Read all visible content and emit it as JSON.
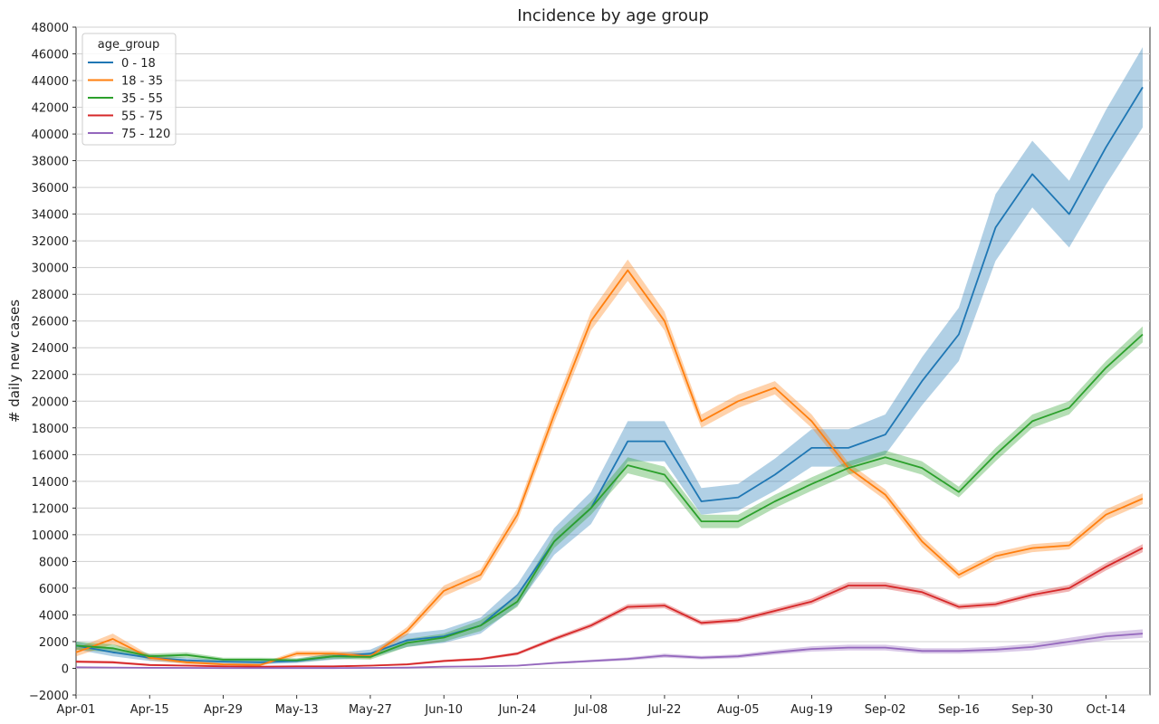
{
  "chart_data": {
    "type": "line",
    "title": "Incidence by age group",
    "xlabel": "",
    "ylabel": "# daily new cases",
    "ylim": [
      -2000,
      48000
    ],
    "yticks": [
      -2000,
      0,
      2000,
      4000,
      6000,
      8000,
      10000,
      12000,
      14000,
      16000,
      18000,
      20000,
      22000,
      24000,
      26000,
      28000,
      30000,
      32000,
      34000,
      36000,
      38000,
      40000,
      42000,
      44000,
      46000,
      48000
    ],
    "ytick_labels": [
      "−2000",
      "0",
      "2000",
      "4000",
      "6000",
      "8000",
      "10000",
      "12000",
      "14000",
      "16000",
      "18000",
      "20000",
      "22000",
      "24000",
      "26000",
      "28000",
      "30000",
      "32000",
      "34000",
      "36000",
      "38000",
      "40000",
      "42000",
      "44000",
      "46000",
      "48000"
    ],
    "x_dates": [
      "Apr-01",
      "Apr-08",
      "Apr-15",
      "Apr-22",
      "Apr-29",
      "May-06",
      "May-13",
      "May-20",
      "May-27",
      "Jun-03",
      "Jun-10",
      "Jun-17",
      "Jun-24",
      "Jul-01",
      "Jul-08",
      "Jul-15",
      "Jul-22",
      "Jul-29",
      "Aug-05",
      "Aug-12",
      "Aug-19",
      "Aug-26",
      "Sep-02",
      "Sep-09",
      "Sep-16",
      "Sep-23",
      "Sep-30",
      "Oct-07",
      "Oct-14",
      "Oct-21"
    ],
    "xticks": [
      "Apr-01",
      "Apr-15",
      "Apr-29",
      "May-13",
      "May-27",
      "Jun-10",
      "Jun-24",
      "Jul-08",
      "Jul-22",
      "Aug-05",
      "Aug-19",
      "Sep-02",
      "Sep-16",
      "Sep-30",
      "Oct-14"
    ],
    "grid": "horizontal",
    "legend": {
      "title": "age_group",
      "placement": "top-left"
    },
    "series": [
      {
        "name": "0 - 18",
        "color": "#1f77b4",
        "values": [
          1700,
          1200,
          800,
          600,
          500,
          450,
          550,
          900,
          1100,
          2100,
          2400,
          3200,
          5500,
          9500,
          12000,
          17000,
          17000,
          12500,
          12800,
          14500,
          16500,
          16500,
          17500,
          21500,
          25000,
          33000,
          37000,
          34000,
          39000,
          43500
        ],
        "band": [
          300,
          300,
          250,
          200,
          150,
          150,
          150,
          250,
          300,
          500,
          500,
          600,
          800,
          1000,
          1200,
          1500,
          1500,
          1000,
          1000,
          1200,
          1400,
          1400,
          1500,
          1800,
          2000,
          2500,
          2500,
          2500,
          2800,
          3000
        ]
      },
      {
        "name": "18 - 35",
        "color": "#ff7f0e",
        "values": [
          1200,
          2200,
          800,
          450,
          300,
          250,
          1100,
          1100,
          900,
          2800,
          5800,
          7000,
          11500,
          19000,
          26000,
          29800,
          26000,
          18500,
          20000,
          21000,
          18500,
          15000,
          13000,
          9500,
          7000,
          8400,
          9000,
          9200,
          11500,
          12700
        ],
        "band": [
          300,
          400,
          200,
          150,
          100,
          100,
          200,
          200,
          200,
          300,
          400,
          400,
          500,
          600,
          700,
          800,
          700,
          500,
          500,
          500,
          500,
          400,
          400,
          400,
          300,
          300,
          300,
          300,
          400,
          400
        ]
      },
      {
        "name": "35 - 55",
        "color": "#2ca02c",
        "values": [
          1700,
          1500,
          900,
          1000,
          650,
          650,
          600,
          900,
          850,
          1900,
          2300,
          3200,
          5000,
          9500,
          12000,
          15200,
          14500,
          11000,
          11000,
          12500,
          13800,
          15000,
          15800,
          15000,
          13200,
          16000,
          18500,
          19500,
          22500,
          25000
        ],
        "band": [
          300,
          300,
          200,
          200,
          150,
          150,
          150,
          200,
          200,
          300,
          300,
          400,
          400,
          500,
          500,
          600,
          600,
          500,
          500,
          500,
          500,
          500,
          500,
          500,
          400,
          500,
          500,
          500,
          500,
          600
        ]
      },
      {
        "name": "55 - 75",
        "color": "#d62728",
        "values": [
          500,
          450,
          250,
          200,
          150,
          120,
          150,
          150,
          200,
          300,
          550,
          700,
          1100,
          2200,
          3200,
          4600,
          4700,
          3400,
          3600,
          4300,
          5000,
          6200,
          6200,
          5700,
          4600,
          4800,
          5500,
          6000,
          7600,
          9000
        ],
        "band": [
          100,
          100,
          80,
          60,
          50,
          50,
          50,
          50,
          60,
          80,
          100,
          100,
          120,
          150,
          180,
          200,
          200,
          180,
          180,
          200,
          220,
          250,
          250,
          230,
          200,
          200,
          220,
          250,
          280,
          300
        ]
      },
      {
        "name": "75 - 120",
        "color": "#9467bd",
        "values": [
          80,
          60,
          40,
          30,
          20,
          20,
          20,
          20,
          30,
          50,
          120,
          150,
          200,
          400,
          550,
          700,
          950,
          800,
          900,
          1200,
          1450,
          1550,
          1550,
          1300,
          1300,
          1400,
          1600,
          2000,
          2400,
          2600
        ],
        "band": [
          30,
          30,
          20,
          20,
          10,
          10,
          10,
          10,
          15,
          20,
          40,
          50,
          60,
          80,
          100,
          120,
          150,
          130,
          150,
          180,
          200,
          220,
          220,
          200,
          200,
          220,
          250,
          280,
          300,
          320
        ]
      }
    ]
  }
}
